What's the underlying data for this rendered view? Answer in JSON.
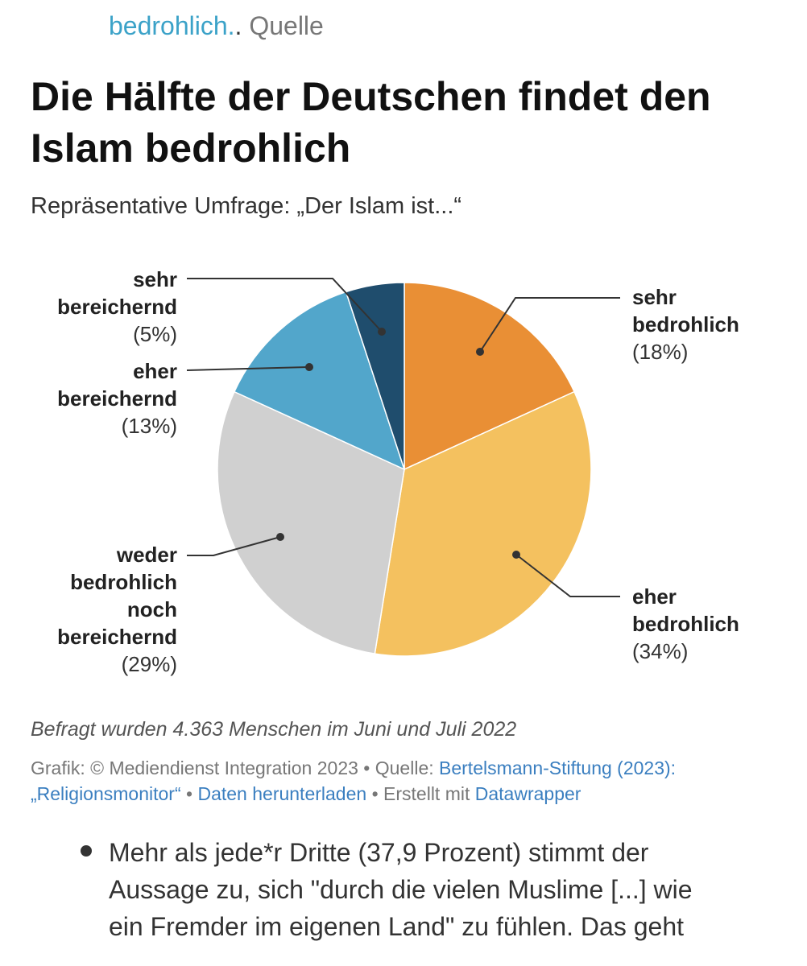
{
  "article_top": {
    "link_text": "bedrohlich.",
    "separator": ".",
    "source_label": "Quelle"
  },
  "chart_data": {
    "type": "pie",
    "title": "Die Hälfte der Deutschen findet den Islam bedrohlich",
    "subtitle": "Repräsentative Umfrage: „Der Islam ist...“",
    "slices": [
      {
        "label_lines": [
          "sehr",
          "bedrohlich"
        ],
        "pct_text": "(18%)",
        "value": 18,
        "color": "#e98f35"
      },
      {
        "label_lines": [
          "eher",
          "bedrohlich"
        ],
        "pct_text": "(34%)",
        "value": 34,
        "color": "#f4c15f"
      },
      {
        "label_lines": [
          "weder",
          "bedrohlich",
          "noch",
          "bereichernd"
        ],
        "pct_text": "(29%)",
        "value": 29,
        "color": "#d0d0d0"
      },
      {
        "label_lines": [
          "eher",
          "bereichernd"
        ],
        "pct_text": "(13%)",
        "value": 13,
        "color": "#52a6cb"
      },
      {
        "label_lines": [
          "sehr",
          "bereichernd"
        ],
        "pct_text": "(5%)",
        "value": 5,
        "color": "#1f4d6d"
      }
    ]
  },
  "footnote": "Befragt wurden 4.363 Menschen im Juni und Juli 2022",
  "credits": {
    "graphic": "Grafik: © Mediendienst Integration 2023",
    "bullet": "•",
    "source_label": "Quelle:",
    "source_link": "Bertelsmann-Stiftung (2023): „Religionsmonitor“",
    "download_link": "Daten herunterladen",
    "created_with": "Erstellt mit",
    "tool_link": "Datawrapper"
  },
  "bullet_item": {
    "lines": [
      "Mehr als jede*r Dritte (37,9 Prozent) stimmt der",
      "Aussage zu, sich \"durch die vielen Muslime [...] wie",
      "ein Fremder im eigenen Land\" zu fühlen. Das geht"
    ]
  }
}
